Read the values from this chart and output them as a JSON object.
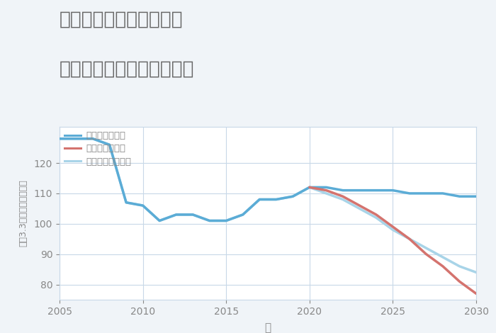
{
  "title_line1": "奈良県橿原市山之坊町の",
  "title_line2": "中古マンションの価格推移",
  "xlabel": "年",
  "ylabel": "坪（3.3㎡）単価（万円）",
  "background_color": "#f0f4f8",
  "plot_background_color": "#ffffff",
  "grid_color": "#c8d8e8",
  "title_color": "#666666",
  "axis_label_color": "#888888",
  "tick_color": "#888888",
  "good_scenario": {
    "label": "グッドシナリオ",
    "color": "#5bacd6",
    "linewidth": 2.5,
    "x": [
      2005,
      2007,
      2008,
      2009,
      2010,
      2011,
      2012,
      2013,
      2014,
      2015,
      2016,
      2017,
      2018,
      2019,
      2020,
      2021,
      2022,
      2023,
      2024,
      2025,
      2026,
      2027,
      2028,
      2029,
      2030
    ],
    "y": [
      128,
      128,
      126,
      107,
      106,
      101,
      103,
      103,
      101,
      101,
      103,
      108,
      108,
      109,
      112,
      112,
      111,
      111,
      111,
      111,
      110,
      110,
      110,
      109,
      109
    ]
  },
  "bad_scenario": {
    "label": "バッドシナリオ",
    "color": "#d4736e",
    "linewidth": 2.5,
    "x": [
      2020,
      2021,
      2022,
      2023,
      2024,
      2025,
      2026,
      2027,
      2028,
      2029,
      2030
    ],
    "y": [
      112,
      111,
      109,
      106,
      103,
      99,
      95,
      90,
      86,
      81,
      77
    ]
  },
  "normal_scenario": {
    "label": "ノーマルシナリオ",
    "color": "#a8d4e8",
    "linewidth": 2.5,
    "x": [
      2005,
      2007,
      2008,
      2009,
      2010,
      2011,
      2012,
      2013,
      2014,
      2015,
      2016,
      2017,
      2018,
      2019,
      2020,
      2021,
      2022,
      2023,
      2024,
      2025,
      2026,
      2027,
      2028,
      2029,
      2030
    ],
    "y": [
      128,
      128,
      126,
      107,
      106,
      101,
      103,
      103,
      101,
      101,
      103,
      108,
      108,
      109,
      112,
      110,
      108,
      105,
      102,
      98,
      95,
      92,
      89,
      86,
      84
    ]
  },
  "xlim": [
    2005,
    2030
  ],
  "ylim": [
    75,
    132
  ],
  "xticks": [
    2005,
    2010,
    2015,
    2020,
    2025,
    2030
  ],
  "yticks": [
    80,
    90,
    100,
    110,
    120
  ]
}
